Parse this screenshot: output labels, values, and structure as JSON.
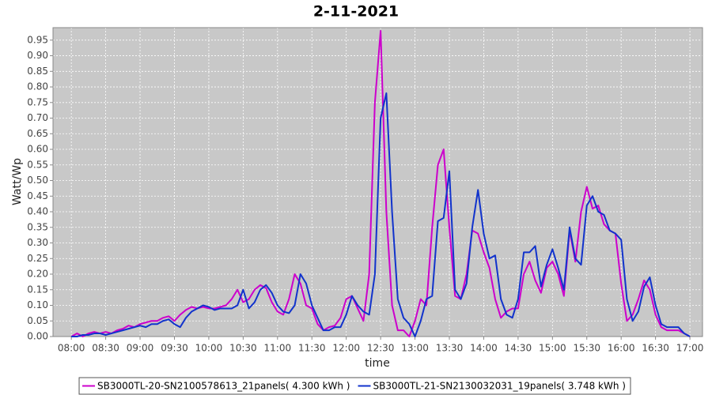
{
  "chart_data": {
    "type": "line",
    "title": "2-11-2021",
    "x_label": "time",
    "y_label": "Watt/Wp",
    "x": [
      "08:00",
      "08:05",
      "08:10",
      "08:15",
      "08:20",
      "08:25",
      "08:30",
      "08:35",
      "08:40",
      "08:45",
      "08:50",
      "08:55",
      "09:00",
      "09:05",
      "09:10",
      "09:15",
      "09:20",
      "09:25",
      "09:30",
      "09:35",
      "09:40",
      "09:45",
      "09:50",
      "09:55",
      "10:00",
      "10:05",
      "10:10",
      "10:15",
      "10:20",
      "10:25",
      "10:30",
      "10:35",
      "10:40",
      "10:45",
      "10:50",
      "10:55",
      "11:00",
      "11:05",
      "11:10",
      "11:15",
      "11:20",
      "11:25",
      "11:30",
      "11:35",
      "11:40",
      "11:45",
      "11:50",
      "11:55",
      "12:00",
      "12:05",
      "12:10",
      "12:15",
      "12:20",
      "12:25",
      "12:30",
      "12:35",
      "12:40",
      "12:45",
      "12:50",
      "12:55",
      "13:00",
      "13:05",
      "13:10",
      "13:15",
      "13:20",
      "13:25",
      "13:30",
      "13:35",
      "13:40",
      "13:45",
      "13:50",
      "13:55",
      "14:00",
      "14:05",
      "14:10",
      "14:15",
      "14:20",
      "14:25",
      "14:30",
      "14:35",
      "14:40",
      "14:45",
      "14:50",
      "14:55",
      "15:00",
      "15:05",
      "15:10",
      "15:15",
      "15:20",
      "15:25",
      "15:30",
      "15:35",
      "15:40",
      "15:45",
      "15:50",
      "15:55",
      "16:00",
      "16:05",
      "16:10",
      "16:15",
      "16:20",
      "16:25",
      "16:30",
      "16:35",
      "16:40",
      "16:45",
      "16:50",
      "16:55",
      "17:00"
    ],
    "xlim": [
      "07:44",
      "17:11"
    ],
    "xticks": [
      "08:00",
      "08:30",
      "09:00",
      "09:30",
      "10:00",
      "10:30",
      "11:00",
      "11:30",
      "12:00",
      "12:30",
      "13:00",
      "13:30",
      "14:00",
      "14:30",
      "15:00",
      "15:30",
      "16:00",
      "16:30",
      "17:00"
    ],
    "ylim": [
      0,
      0.99
    ],
    "yticks": [
      {
        "value": 0,
        "label": "0.00"
      },
      {
        "value": 0.05,
        "label": "0.05"
      },
      {
        "value": 0.1,
        "label": "0.10"
      },
      {
        "value": 0.15,
        "label": "0.15"
      },
      {
        "value": 0.2,
        "label": "0.20"
      },
      {
        "value": 0.25,
        "label": "0.25"
      },
      {
        "value": 0.3,
        "label": "0.30"
      },
      {
        "value": 0.35,
        "label": "0.35"
      },
      {
        "value": 0.4,
        "label": "0.40"
      },
      {
        "value": 0.45,
        "label": "0.45"
      },
      {
        "value": 0.5,
        "label": "0.50"
      },
      {
        "value": 0.55,
        "label": "0.55"
      },
      {
        "value": 0.6,
        "label": "0.60"
      },
      {
        "value": 0.65,
        "label": "0.65"
      },
      {
        "value": 0.7,
        "label": "0.70"
      },
      {
        "value": 0.75,
        "label": "0.75"
      },
      {
        "value": 0.8,
        "label": "0.80"
      },
      {
        "value": 0.85,
        "label": "0.85"
      },
      {
        "value": 0.9,
        "label": "0.90"
      },
      {
        "value": 0.95,
        "label": "0.95"
      }
    ],
    "grid": true,
    "legend": "bottom",
    "series": [
      {
        "name": "SB3000TL-20-SN2100578613_21panels( 4.300 kWh )",
        "color": "#cc00cc",
        "values": [
          0,
          0.01,
          0,
          0.01,
          0.015,
          0.01,
          0.015,
          0.01,
          0.02,
          0.025,
          0.035,
          0.03,
          0.04,
          0.045,
          0.05,
          0.05,
          0.06,
          0.065,
          0.05,
          0.07,
          0.085,
          0.095,
          0.09,
          0.095,
          0.09,
          0.09,
          0.095,
          0.1,
          0.12,
          0.15,
          0.11,
          0.12,
          0.15,
          0.165,
          0.155,
          0.11,
          0.08,
          0.07,
          0.12,
          0.2,
          0.17,
          0.1,
          0.09,
          0.04,
          0.02,
          0.03,
          0.035,
          0.06,
          0.12,
          0.13,
          0.09,
          0.05,
          0.2,
          0.75,
          0.98,
          0.4,
          0.1,
          0.02,
          0.02,
          0,
          0.05,
          0.12,
          0.1,
          0.35,
          0.55,
          0.6,
          0.35,
          0.13,
          0.12,
          0.2,
          0.34,
          0.33,
          0.27,
          0.22,
          0.12,
          0.06,
          0.08,
          0.09,
          0.09,
          0.2,
          0.24,
          0.18,
          0.14,
          0.22,
          0.24,
          0.2,
          0.13,
          0.34,
          0.24,
          0.4,
          0.48,
          0.41,
          0.42,
          0.36,
          0.34,
          0.33,
          0.17,
          0.05,
          0.07,
          0.12,
          0.18,
          0.15,
          0.07,
          0.03,
          0.02,
          0.02,
          0.02,
          0.01,
          0
        ]
      },
      {
        "name": "SB3000TL-21-SN2130032031_19panels( 3.748 kWh )",
        "color": "#1133cc",
        "values": [
          0,
          0,
          0.005,
          0.005,
          0.01,
          0.01,
          0.005,
          0.01,
          0.015,
          0.02,
          0.025,
          0.03,
          0.035,
          0.03,
          0.04,
          0.04,
          0.05,
          0.055,
          0.04,
          0.03,
          0.06,
          0.08,
          0.09,
          0.1,
          0.095,
          0.085,
          0.09,
          0.09,
          0.09,
          0.1,
          0.15,
          0.09,
          0.11,
          0.15,
          0.165,
          0.14,
          0.1,
          0.08,
          0.075,
          0.1,
          0.2,
          0.17,
          0.1,
          0.06,
          0.02,
          0.02,
          0.03,
          0.03,
          0.07,
          0.13,
          0.1,
          0.08,
          0.07,
          0.2,
          0.7,
          0.78,
          0.4,
          0.12,
          0.06,
          0.04,
          0,
          0.05,
          0.12,
          0.13,
          0.37,
          0.38,
          0.53,
          0.15,
          0.12,
          0.17,
          0.35,
          0.47,
          0.33,
          0.25,
          0.26,
          0.12,
          0.07,
          0.06,
          0.12,
          0.27,
          0.27,
          0.29,
          0.16,
          0.23,
          0.28,
          0.22,
          0.15,
          0.35,
          0.25,
          0.23,
          0.42,
          0.45,
          0.4,
          0.39,
          0.34,
          0.33,
          0.31,
          0.12,
          0.05,
          0.08,
          0.16,
          0.19,
          0.1,
          0.04,
          0.03,
          0.03,
          0.03,
          0.01,
          0
        ]
      }
    ]
  }
}
